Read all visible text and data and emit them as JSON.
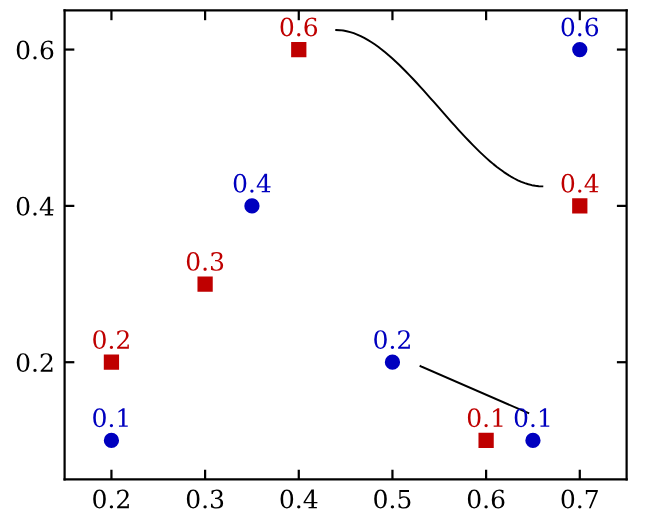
{
  "chart_data": {
    "type": "scatter",
    "xlim": [
      0.15,
      0.75
    ],
    "ylim": [
      0.05,
      0.65
    ],
    "xticks": [
      0.2,
      0.3,
      0.4,
      0.5,
      0.6,
      0.7
    ],
    "yticks": [
      0.2,
      0.4,
      0.6
    ],
    "grid": false,
    "data_labels": true,
    "series": [
      {
        "color": "#0000bf",
        "marker": "circle",
        "x": [
          0.2,
          0.35,
          0.5,
          0.65,
          0.7
        ],
        "values": [
          0.1,
          0.4,
          0.2,
          0.1,
          0.6
        ]
      },
      {
        "color": "#bf0000",
        "marker": "square",
        "x": [
          0.2,
          0.3,
          0.4,
          0.6,
          0.7
        ],
        "values": [
          0.2,
          0.3,
          0.6,
          0.1,
          0.4
        ]
      }
    ]
  }
}
